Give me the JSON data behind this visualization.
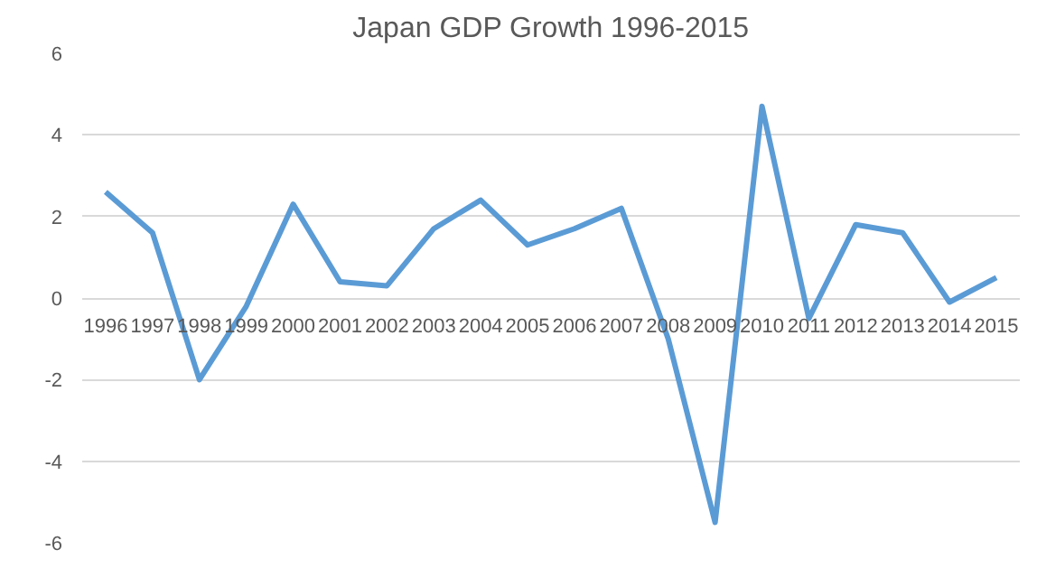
{
  "chart_data": {
    "type": "line",
    "title": "Japan GDP Growth 1996-2015",
    "categories": [
      "1996",
      "1997",
      "1998",
      "1999",
      "2000",
      "2001",
      "2002",
      "2003",
      "2004",
      "2005",
      "2006",
      "2007",
      "2008",
      "2009",
      "2010",
      "2011",
      "2012",
      "2013",
      "2014",
      "2015"
    ],
    "series": [
      {
        "color": "#5b9bd5",
        "values": [
          2.6,
          1.6,
          -2.0,
          -0.2,
          2.3,
          0.4,
          0.3,
          1.7,
          2.4,
          1.3,
          1.7,
          2.2,
          -1.0,
          -5.5,
          4.7,
          -0.5,
          1.8,
          1.6,
          -0.1,
          0.5
        ]
      }
    ],
    "ylim": [
      -6,
      6
    ],
    "yticks": [
      -6,
      -4,
      -2,
      0,
      2,
      4,
      6
    ],
    "grid": "y",
    "marker": "none",
    "line_style": "solid"
  }
}
